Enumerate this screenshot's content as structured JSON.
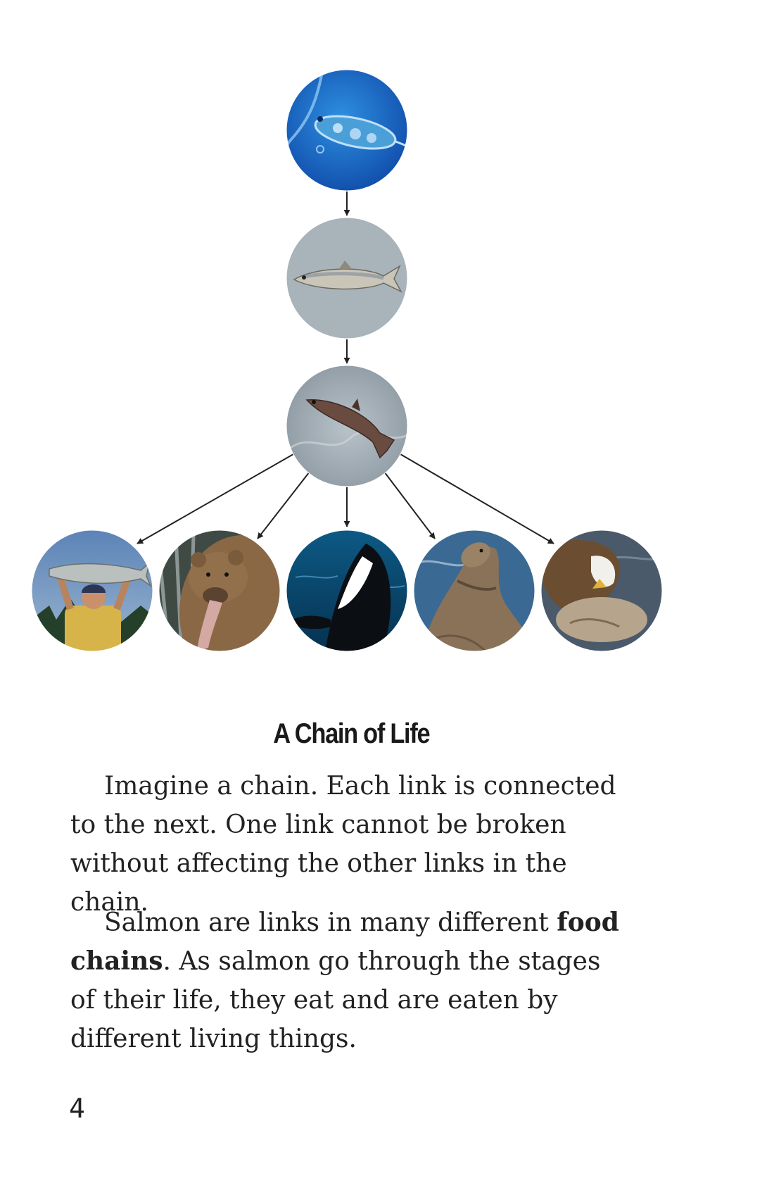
{
  "diagram": {
    "nodes": [
      {
        "id": "plankton",
        "name": "plankton-photo"
      },
      {
        "id": "herring",
        "name": "herring-photo"
      },
      {
        "id": "salmon",
        "name": "salmon-photo"
      },
      {
        "id": "fisherman",
        "name": "fisherman-photo"
      },
      {
        "id": "bear",
        "name": "bear-photo"
      },
      {
        "id": "orca",
        "name": "orca-photo"
      },
      {
        "id": "sea-lion",
        "name": "sea-lion-photo"
      },
      {
        "id": "eagle",
        "name": "eagle-photo"
      }
    ],
    "edges": [
      [
        "plankton",
        "herring"
      ],
      [
        "herring",
        "salmon"
      ],
      [
        "salmon",
        "fisherman"
      ],
      [
        "salmon",
        "bear"
      ],
      [
        "salmon",
        "orca"
      ],
      [
        "salmon",
        "sea-lion"
      ],
      [
        "salmon",
        "eagle"
      ]
    ]
  },
  "heading": "A Chain of Life",
  "paragraph1": "Imagine a chain. Each link is connected to the next. One link cannot be broken without affecting the other links in the chain.",
  "paragraph2": {
    "before": "Salmon are links in many different ",
    "bold": "food chains",
    "after": ". As salmon go through the stages of their life, they eat and are eaten by different living things."
  },
  "page_number": "4"
}
